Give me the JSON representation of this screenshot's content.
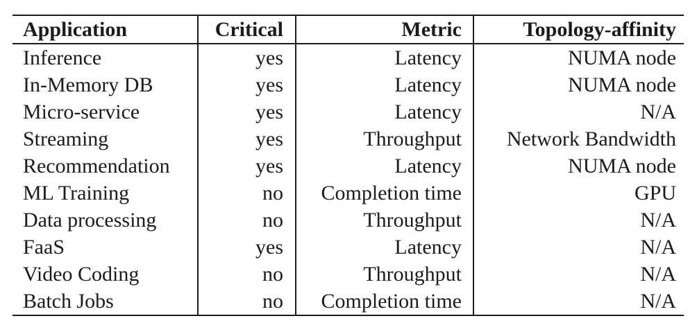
{
  "table": {
    "columns": [
      {
        "key": "application",
        "label": "Application"
      },
      {
        "key": "critical",
        "label": "Critical"
      },
      {
        "key": "metric",
        "label": "Metric"
      },
      {
        "key": "topology-affinity",
        "label": "Topology-affinity"
      }
    ],
    "rows": [
      [
        "Inference",
        "yes",
        "Latency",
        "NUMA node"
      ],
      [
        "In-Memory DB",
        "yes",
        "Latency",
        "NUMA node"
      ],
      [
        "Micro-service",
        "yes",
        "Latency",
        "N/A"
      ],
      [
        "Streaming",
        "yes",
        "Throughput",
        "Network Bandwidth"
      ],
      [
        "Recommendation",
        "yes",
        "Latency",
        "NUMA node"
      ],
      [
        "ML Training",
        "no",
        "Completion time",
        "GPU"
      ],
      [
        "Data processing",
        "no",
        "Throughput",
        "N/A"
      ],
      [
        "FaaS",
        "yes",
        "Latency",
        "N/A"
      ],
      [
        "Video Coding",
        "no",
        "Throughput",
        "N/A"
      ],
      [
        "Batch Jobs",
        "no",
        "Completion time",
        "N/A"
      ]
    ],
    "colors": {
      "text": "#1b1b1b",
      "rule": "#1b1b1b",
      "background": "#ffffff"
    }
  }
}
